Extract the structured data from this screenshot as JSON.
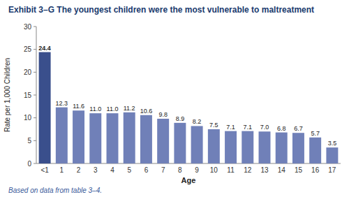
{
  "chart_data": {
    "type": "bar",
    "title": "Exhibit 3–G The youngest children were the most vulnerable to maltreatment",
    "categories": [
      "<1",
      "1",
      "2",
      "3",
      "4",
      "5",
      "6",
      "7",
      "8",
      "9",
      "10",
      "11",
      "12",
      "13",
      "14",
      "15",
      "16",
      "17"
    ],
    "values": [
      24.4,
      12.3,
      11.6,
      11.0,
      11.0,
      11.2,
      10.6,
      9.8,
      8.9,
      8.2,
      7.5,
      7.1,
      7.1,
      7.0,
      6.8,
      6.7,
      5.7,
      3.5
    ],
    "value_labels": [
      "24.4",
      "12.3",
      "11.6",
      "11.0",
      "11.0",
      "11.2",
      "10.6",
      "9.8",
      "8.9",
      "8.2",
      "7.5",
      "7.1",
      "7.1",
      "7.0",
      "6.8",
      "6.7",
      "5.7",
      "3.5"
    ],
    "colors": [
      "#3a4f8c",
      "#7080b8",
      "#7080b8",
      "#7080b8",
      "#7080b8",
      "#7080b8",
      "#7080b8",
      "#7080b8",
      "#7080b8",
      "#7080b8",
      "#7080b8",
      "#7080b8",
      "#7080b8",
      "#7080b8",
      "#7080b8",
      "#7080b8",
      "#7080b8",
      "#7080b8"
    ],
    "xlabel": "Age",
    "ylabel": "Rate per 1,000 Children",
    "ylim": [
      0,
      30
    ],
    "yticks": [
      0,
      5,
      10,
      15,
      20,
      25,
      30
    ],
    "grid": false,
    "data_labels": true,
    "footnote": "Based on data from table 3–4."
  }
}
